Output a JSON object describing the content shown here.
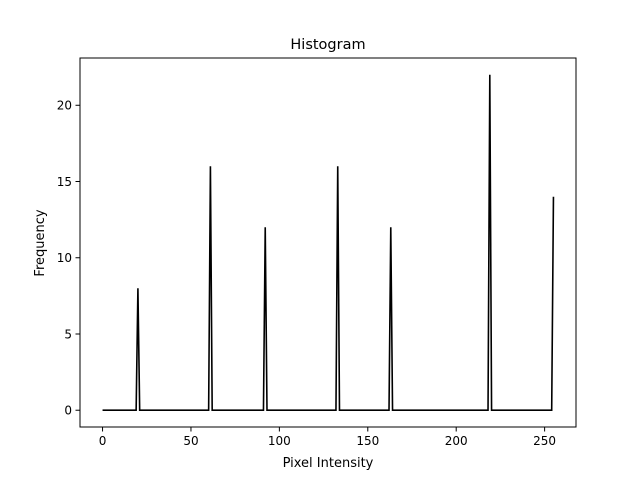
{
  "chart_data": {
    "type": "line",
    "title": "Histogram",
    "xlabel": "Pixel Intensity",
    "ylabel": "Frequency",
    "xlim": [
      -12.75,
      267.75
    ],
    "ylim": [
      -1.1,
      23.1
    ],
    "x_ticks": [
      0,
      50,
      100,
      150,
      200,
      250
    ],
    "y_ticks": [
      0,
      5,
      10,
      15,
      20
    ],
    "grid": false,
    "legend": "none",
    "line_color": "#000000",
    "x_range": [
      0,
      255
    ],
    "series": [
      {
        "peaks": [
          {
            "x": 20,
            "y": 8
          },
          {
            "x": 61,
            "y": 16
          },
          {
            "x": 92,
            "y": 12
          },
          {
            "x": 133,
            "y": 16
          },
          {
            "x": 163,
            "y": 12
          },
          {
            "x": 219,
            "y": 22
          },
          {
            "x": 255,
            "y": 14
          }
        ]
      }
    ]
  }
}
